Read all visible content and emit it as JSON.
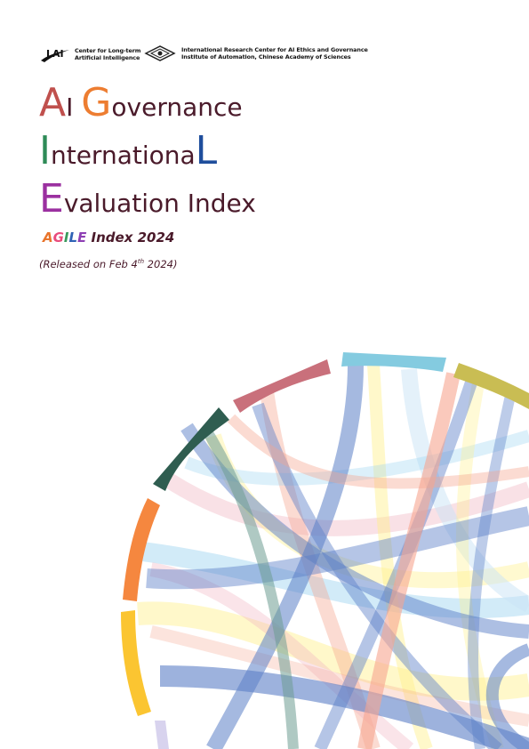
{
  "logos": {
    "left": {
      "mark": "LAI",
      "line1": "Center for Long-term",
      "line2": "Artificial Intelligence"
    },
    "right": {
      "line1": "International Research Center for AI Ethics and Governance",
      "line2": "Institute of Automation, Chinese Academy of Sciences"
    }
  },
  "title": {
    "line1": {
      "initial": "A",
      "initial2": "I",
      "space": " ",
      "initial3": "G",
      "rest": "overnance"
    },
    "line2": {
      "initial": "I",
      "middle": "nternationa",
      "final": "L"
    },
    "line3": {
      "initial": "E",
      "rest": "valuation Index"
    }
  },
  "subtitle": {
    "letters": [
      "A",
      "G",
      "I",
      "L",
      "E"
    ],
    "rest": " Index 2024"
  },
  "released": {
    "prefix": "(Released on Feb 4",
    "sup": "th",
    "suffix": " 2024)"
  },
  "colors": {
    "title_text": "#4a1a2a",
    "A": "#c0504d",
    "G": "#ed7d31",
    "I": "#2e8b57",
    "L": "#1f4e9c",
    "E": "#9b30a0",
    "subtitle_A": "#e8742b",
    "subtitle_G": "#e94b7c",
    "subtitle_I": "#3a9a5c",
    "subtitle_L": "#2f62b5",
    "subtitle_E": "#8e3fb4"
  },
  "graphic": {
    "icon": "chord-diagram-illustration",
    "arc_colors": [
      "#d8d3ee",
      "#fbc531",
      "#f5873f",
      "#2f5d50",
      "#c9707b",
      "#84cbe0",
      "#c9bd53"
    ],
    "ribbon_colors": [
      "#5b7fc7",
      "#f6a58f",
      "#fff08a",
      "#9bd3f0",
      "#6d9c92",
      "#f0b3c0",
      "#c9e3f5"
    ]
  }
}
